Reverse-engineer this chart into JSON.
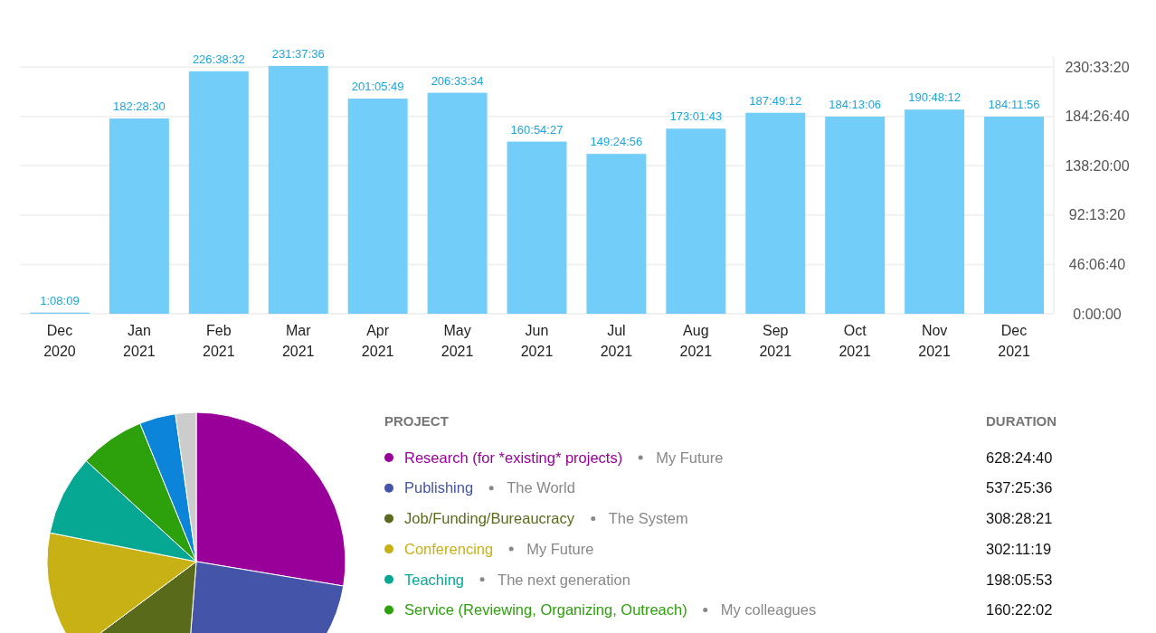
{
  "chart_data": [
    {
      "type": "bar",
      "categories": [
        "Dec 2020",
        "Jan 2021",
        "Feb 2021",
        "Mar 2021",
        "Apr 2021",
        "May 2021",
        "Jun 2021",
        "Jul 2021",
        "Aug 2021",
        "Sep 2021",
        "Oct 2021",
        "Nov 2021",
        "Dec 2021"
      ],
      "values": [
        1.1358,
        182.475,
        226.6422,
        231.6267,
        201.0969,
        206.5594,
        160.9075,
        149.4156,
        173.0286,
        187.82,
        184.2183,
        190.8033,
        184.1989
      ],
      "value_labels": [
        "1:08:09",
        "182:28:30",
        "226:38:32",
        "231:37:36",
        "201:05:49",
        "206:33:34",
        "160:54:27",
        "149:24:56",
        "173:01:43",
        "187:49:12",
        "184:13:06",
        "190:48:12",
        "184:11:56"
      ],
      "color": "#72cdf8",
      "ylim": [
        0,
        240
      ],
      "yticks": [
        {
          "value": 0,
          "label": "0:00:00"
        },
        {
          "value": 46.1111,
          "label": "46:06:40"
        },
        {
          "value": 92.2222,
          "label": "92:13:20"
        },
        {
          "value": 138.3333,
          "label": "138:20:00"
        },
        {
          "value": 184.4444,
          "label": "184:26:40"
        },
        {
          "value": 230.5556,
          "label": "230:33:20"
        }
      ],
      "grid": true
    },
    {
      "type": "pie",
      "legend": "right",
      "legend_title": "PROJECT",
      "categories": [
        "Research (for *existing* projects)",
        "Publishing",
        "Job/Funding/Bureaucracy",
        "Conferencing",
        "Teaching",
        "Service (Reviewing, Organizing, Outreach)",
        null,
        null
      ],
      "values": [
        628.4111,
        537.4267,
        308.4725,
        302.1886,
        198.0981,
        160.3672,
        89,
        51
      ],
      "value_labels": [
        "628:24:40",
        "537:25:36",
        "308:28:21",
        "302:11:19",
        "198:05:53",
        "160:22:02",
        null,
        null
      ],
      "colors": [
        "#990099",
        "#4454a9",
        "#5a6a1b",
        "#c7b115",
        "#06a894",
        "#2da10b",
        "#0b84d9",
        "#cccccc"
      ],
      "annotations": [
        "DURATION",
        "My Future",
        "The World",
        "The System",
        "My Future",
        "The next generation",
        "My colleagues"
      ]
    }
  ]
}
